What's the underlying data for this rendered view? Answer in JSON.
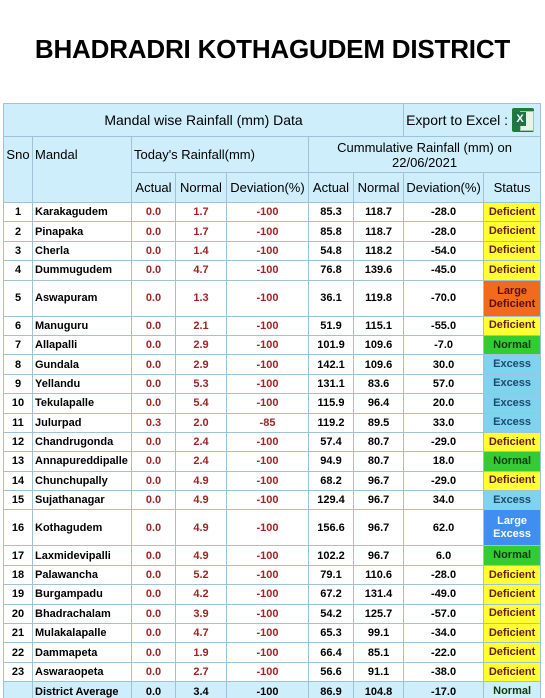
{
  "title": "BHADRADRI KOTHAGUDEM DISTRICT",
  "table": {
    "caption": "Mandal wise Rainfall (mm) Data",
    "export_label": "Export to Excel :",
    "headers": {
      "sno": "Sno",
      "mandal": "Mandal",
      "today": "Today's Rainfall(mm)",
      "cumulative": "Cummulative Rainfall (mm) on 22/06/2021",
      "actual": "Actual",
      "normal": "Normal",
      "deviation": "Deviation(%)",
      "status": "Status"
    },
    "rows": [
      {
        "sno": "1",
        "mandal": "Karakagudem",
        "t_actual": "0.0",
        "t_normal": "1.7",
        "t_dev": "-100",
        "c_actual": "85.3",
        "c_normal": "118.7",
        "c_dev": "-28.0",
        "status": "Deficient",
        "status_class": "st-deficient"
      },
      {
        "sno": "2",
        "mandal": "Pinapaka",
        "t_actual": "0.0",
        "t_normal": "1.7",
        "t_dev": "-100",
        "c_actual": "85.8",
        "c_normal": "118.7",
        "c_dev": "-28.0",
        "status": "Deficient",
        "status_class": "st-deficient"
      },
      {
        "sno": "3",
        "mandal": "Cherla",
        "t_actual": "0.0",
        "t_normal": "1.4",
        "t_dev": "-100",
        "c_actual": "54.8",
        "c_normal": "118.2",
        "c_dev": "-54.0",
        "status": "Deficient",
        "status_class": "st-deficient"
      },
      {
        "sno": "4",
        "mandal": "Dummugudem",
        "t_actual": "0.0",
        "t_normal": "4.7",
        "t_dev": "-100",
        "c_actual": "76.8",
        "c_normal": "139.6",
        "c_dev": "-45.0",
        "status": "Deficient",
        "status_class": "st-deficient"
      },
      {
        "sno": "5",
        "mandal": "Aswapuram",
        "t_actual": "0.0",
        "t_normal": "1.3",
        "t_dev": "-100",
        "c_actual": "36.1",
        "c_normal": "119.8",
        "c_dev": "-70.0",
        "status": "Large Deficient",
        "status_class": "st-large-deficient",
        "tall": true
      },
      {
        "sno": "6",
        "mandal": "Manuguru",
        "t_actual": "0.0",
        "t_normal": "2.1",
        "t_dev": "-100",
        "c_actual": "51.9",
        "c_normal": "115.1",
        "c_dev": "-55.0",
        "status": "Deficient",
        "status_class": "st-deficient"
      },
      {
        "sno": "7",
        "mandal": "Allapalli",
        "t_actual": "0.0",
        "t_normal": "2.9",
        "t_dev": "-100",
        "c_actual": "101.9",
        "c_normal": "109.6",
        "c_dev": "-7.0",
        "status": "Normal",
        "status_class": "st-normal"
      },
      {
        "sno": "8",
        "mandal": "Gundala",
        "t_actual": "0.0",
        "t_normal": "2.9",
        "t_dev": "-100",
        "c_actual": "142.1",
        "c_normal": "109.6",
        "c_dev": "30.0",
        "status": "Excess",
        "status_class": "st-excess"
      },
      {
        "sno": "9",
        "mandal": "Yellandu",
        "t_actual": "0.0",
        "t_normal": "5.3",
        "t_dev": "-100",
        "c_actual": "131.1",
        "c_normal": "83.6",
        "c_dev": "57.0",
        "status": "Excess",
        "status_class": "st-excess"
      },
      {
        "sno": "10",
        "mandal": "Tekulapalle",
        "t_actual": "0.0",
        "t_normal": "5.4",
        "t_dev": "-100",
        "c_actual": "115.9",
        "c_normal": "96.4",
        "c_dev": "20.0",
        "status": "Excess",
        "status_class": "st-excess"
      },
      {
        "sno": "11",
        "mandal": "Julurpad",
        "t_actual": "0.3",
        "t_normal": "2.0",
        "t_dev": "-85",
        "c_actual": "119.2",
        "c_normal": "89.5",
        "c_dev": "33.0",
        "status": "Excess",
        "status_class": "st-excess"
      },
      {
        "sno": "12",
        "mandal": "Chandrugonda",
        "t_actual": "0.0",
        "t_normal": "2.4",
        "t_dev": "-100",
        "c_actual": "57.4",
        "c_normal": "80.7",
        "c_dev": "-29.0",
        "status": "Deficient",
        "status_class": "st-deficient"
      },
      {
        "sno": "13",
        "mandal": "Annapureddipalle",
        "t_actual": "0.0",
        "t_normal": "2.4",
        "t_dev": "-100",
        "c_actual": "94.9",
        "c_normal": "80.7",
        "c_dev": "18.0",
        "status": "Normal",
        "status_class": "st-normal"
      },
      {
        "sno": "14",
        "mandal": "Chunchupally",
        "t_actual": "0.0",
        "t_normal": "4.9",
        "t_dev": "-100",
        "c_actual": "68.2",
        "c_normal": "96.7",
        "c_dev": "-29.0",
        "status": "Deficient",
        "status_class": "st-deficient"
      },
      {
        "sno": "15",
        "mandal": "Sujathanagar",
        "t_actual": "0.0",
        "t_normal": "4.9",
        "t_dev": "-100",
        "c_actual": "129.4",
        "c_normal": "96.7",
        "c_dev": "34.0",
        "status": "Excess",
        "status_class": "st-excess"
      },
      {
        "sno": "16",
        "mandal": "Kothagudem",
        "t_actual": "0.0",
        "t_normal": "4.9",
        "t_dev": "-100",
        "c_actual": "156.6",
        "c_normal": "96.7",
        "c_dev": "62.0",
        "status": "Large Excess",
        "status_class": "st-large-excess",
        "tall": true
      },
      {
        "sno": "17",
        "mandal": "Laxmidevipalli",
        "t_actual": "0.0",
        "t_normal": "4.9",
        "t_dev": "-100",
        "c_actual": "102.2",
        "c_normal": "96.7",
        "c_dev": "6.0",
        "status": "Normal",
        "status_class": "st-normal"
      },
      {
        "sno": "18",
        "mandal": "Palawancha",
        "t_actual": "0.0",
        "t_normal": "5.2",
        "t_dev": "-100",
        "c_actual": "79.1",
        "c_normal": "110.6",
        "c_dev": "-28.0",
        "status": "Deficient",
        "status_class": "st-deficient"
      },
      {
        "sno": "19",
        "mandal": "Burgampadu",
        "t_actual": "0.0",
        "t_normal": "4.2",
        "t_dev": "-100",
        "c_actual": "67.2",
        "c_normal": "131.4",
        "c_dev": "-49.0",
        "status": "Deficient",
        "status_class": "st-deficient"
      },
      {
        "sno": "20",
        "mandal": "Bhadrachalam",
        "t_actual": "0.0",
        "t_normal": "3.9",
        "t_dev": "-100",
        "c_actual": "54.2",
        "c_normal": "125.7",
        "c_dev": "-57.0",
        "status": "Deficient",
        "status_class": "st-deficient"
      },
      {
        "sno": "21",
        "mandal": "Mulakalapalle",
        "t_actual": "0.0",
        "t_normal": "4.7",
        "t_dev": "-100",
        "c_actual": "65.3",
        "c_normal": "99.1",
        "c_dev": "-34.0",
        "status": "Deficient",
        "status_class": "st-deficient"
      },
      {
        "sno": "22",
        "mandal": "Dammapeta",
        "t_actual": "0.0",
        "t_normal": "1.9",
        "t_dev": "-100",
        "c_actual": "66.4",
        "c_normal": "85.1",
        "c_dev": "-22.0",
        "status": "Deficient",
        "status_class": "st-deficient"
      },
      {
        "sno": "23",
        "mandal": "Aswaraopeta",
        "t_actual": "0.0",
        "t_normal": "2.7",
        "t_dev": "-100",
        "c_actual": "56.6",
        "c_normal": "91.1",
        "c_dev": "-38.0",
        "status": "Deficient",
        "status_class": "st-deficient"
      }
    ],
    "average": {
      "label": "District Average",
      "t_actual": "0.0",
      "t_normal": "3.4",
      "t_dev": "-100",
      "c_actual": "86.9",
      "c_normal": "104.8",
      "c_dev": "-17.0",
      "status": "Normal",
      "status_class": "st-normal"
    },
    "colors": {
      "header_bg": "#cfeefb",
      "border": "#9ec3d9",
      "today_values": "#a02424",
      "deficient": "#ffff33",
      "normal": "#33cc33",
      "excess": "#7fd3ef",
      "large_excess": "#3f8ef0",
      "large_deficient": "#f26a1b"
    },
    "icons": {
      "export": "excel-icon"
    }
  }
}
